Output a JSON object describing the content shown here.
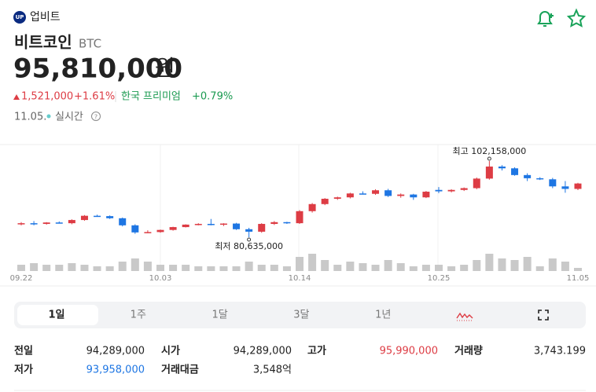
{
  "header": {
    "brand": "업비트"
  },
  "asset": {
    "name": "비트코인",
    "symbol": "BTC",
    "price": "95,810,000",
    "unit": "원",
    "change": "1,521,000",
    "change_rate": "+1.61%",
    "premium_label": "한국 프리미엄",
    "premium": "+0.79%",
    "date": "11.05.",
    "realtime": "실시간"
  },
  "chart_data": {
    "type": "candlestick",
    "up_color": "#dd3c44",
    "down_color": "#1e76e3",
    "volume_color": "#c9c9c9",
    "annotations": {
      "high": "최고 102,158,000",
      "low": "최저 80,635,000"
    },
    "categories": [
      "09.22",
      null,
      null,
      null,
      null,
      null,
      null,
      null,
      null,
      null,
      null,
      "10.03",
      null,
      null,
      null,
      null,
      null,
      null,
      null,
      null,
      null,
      null,
      "10.14",
      null,
      null,
      null,
      null,
      null,
      null,
      null,
      null,
      null,
      null,
      "10.25",
      null,
      null,
      null,
      null,
      null,
      null,
      null,
      null,
      null,
      null,
      "11.05"
    ],
    "open": [
      84300000,
      84600000,
      84400000,
      84800000,
      84600000,
      85500000,
      86700000,
      86600000,
      86000000,
      84000000,
      82000000,
      82100000,
      82700000,
      83500000,
      84200000,
      84400000,
      84300000,
      84500000,
      82900000,
      82200000,
      84400000,
      84900000,
      84600000,
      88000000,
      90000000,
      91500000,
      91900000,
      93000000,
      92900000,
      93900000,
      92300000,
      92700000,
      91900000,
      94000000,
      93600000,
      94000000,
      94500000,
      97200000,
      100600000,
      100100000,
      98200000,
      97300000,
      97000000,
      95000000,
      94289000
    ],
    "high": [
      84900000,
      85200000,
      84900000,
      85100000,
      85700000,
      86900000,
      87000000,
      86800000,
      86200000,
      84300000,
      82600000,
      82800000,
      83600000,
      84300000,
      84600000,
      85800000,
      84600000,
      84700000,
      83300000,
      84600000,
      85200000,
      85000000,
      88300000,
      90300000,
      91700000,
      92100000,
      93200000,
      93600000,
      94200000,
      94300000,
      93000000,
      92900000,
      93700000,
      94800000,
      94200000,
      94700000,
      97500000,
      102158000,
      101000000,
      100400000,
      98700000,
      97600000,
      97400000,
      96500000,
      95990000
    ],
    "low": [
      84000000,
      84000000,
      84200000,
      84500000,
      84300000,
      85300000,
      86400000,
      85800000,
      83700000,
      81600000,
      81800000,
      81900000,
      82500000,
      83400000,
      84000000,
      84000000,
      83800000,
      82700000,
      80635000,
      81900000,
      84100000,
      84400000,
      84400000,
      87600000,
      89700000,
      91200000,
      91600000,
      92700000,
      92600000,
      92000000,
      91800000,
      91200000,
      91700000,
      93100000,
      93300000,
      93700000,
      94200000,
      96900000,
      99500000,
      98000000,
      96500000,
      96800000,
      94500000,
      93200000,
      93958000
    ],
    "close": [
      84600000,
      84400000,
      84800000,
      84600000,
      85500000,
      86700000,
      86600000,
      86000000,
      84000000,
      82000000,
      82100000,
      82700000,
      83500000,
      84200000,
      84400000,
      84300000,
      84500000,
      82900000,
      82200000,
      84400000,
      84900000,
      84600000,
      88000000,
      90000000,
      91500000,
      91900000,
      93000000,
      92900000,
      93900000,
      92300000,
      92700000,
      91900000,
      93500000,
      93600000,
      94000000,
      94500000,
      97200000,
      100600000,
      100100000,
      98200000,
      97300000,
      97000000,
      95000000,
      94289000,
      95810000
    ],
    "volume": [
      7488,
      9360,
      7488,
      7488,
      9360,
      7488,
      5616,
      5616,
      11232,
      14976,
      11232,
      7488,
      7488,
      7488,
      5616,
      5616,
      5616,
      5616,
      11232,
      7488,
      7488,
      5616,
      16848,
      20592,
      13104,
      7488,
      11232,
      9360,
      7488,
      13104,
      9360,
      5616,
      7488,
      7488,
      5616,
      7488,
      13104,
      20592,
      14976,
      13104,
      16848,
      5616,
      14976,
      11232,
      3743.199
    ]
  },
  "tabs": {
    "items": [
      "1일",
      "1주",
      "1달",
      "3달",
      "1년"
    ],
    "selected": 0
  },
  "stats": {
    "rows": [
      [
        {
          "label": "전일",
          "value": "94,289,000"
        },
        {
          "label": "시가",
          "value": "94,289,000"
        },
        {
          "label": "고가",
          "value": "95,990,000",
          "color": "#dd3c44"
        },
        {
          "label": "거래량",
          "value": "3,743.199"
        }
      ],
      [
        {
          "label": "저가",
          "value": "93,958,000",
          "color": "#1e76e3"
        },
        {
          "label": "거래대금",
          "value": "3,548억"
        }
      ]
    ]
  }
}
